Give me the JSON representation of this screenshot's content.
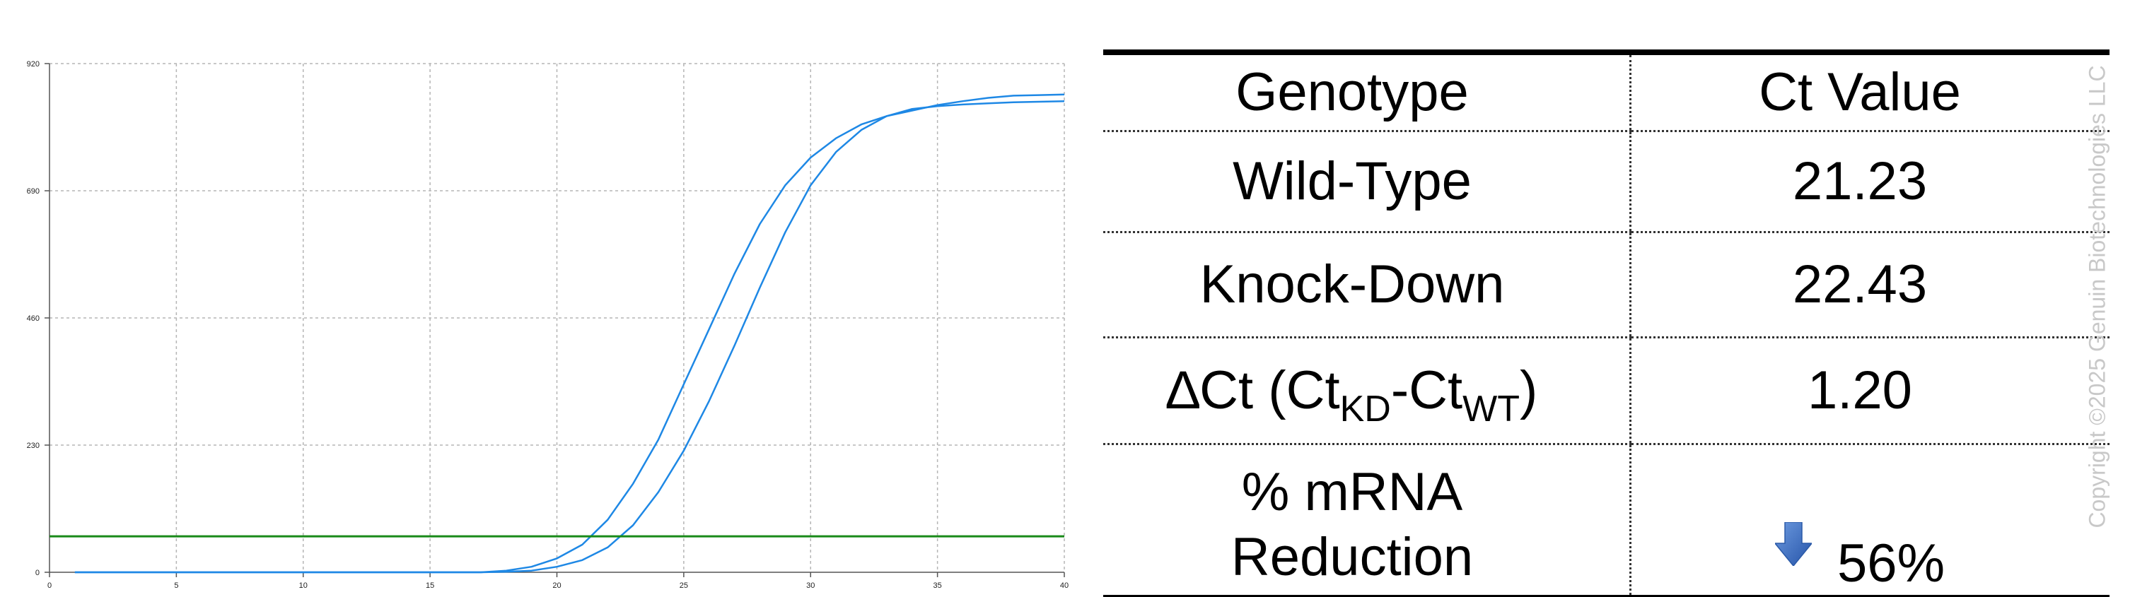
{
  "chart_data": {
    "type": "line",
    "x_ticks": [
      0,
      5,
      10,
      15,
      20,
      25,
      30,
      35,
      40
    ],
    "y_ticks": [
      0,
      230,
      460,
      690,
      920
    ],
    "xlim": [
      0,
      40
    ],
    "ylim": [
      0,
      920
    ],
    "grid": true,
    "threshold": 65,
    "series": [
      {
        "x": [
          1,
          5,
          10,
          15,
          16,
          17,
          18,
          19,
          20,
          21,
          22,
          23,
          24,
          25,
          26,
          27,
          28,
          29,
          30,
          31,
          32,
          33,
          34,
          35,
          36,
          37,
          38,
          39,
          40
        ],
        "values": [
          0,
          0,
          0,
          0,
          0,
          0,
          3,
          10,
          25,
          50,
          95,
          160,
          240,
          340,
          440,
          540,
          630,
          700,
          750,
          785,
          810,
          825,
          835,
          845,
          852,
          858,
          862,
          863,
          864
        ]
      },
      {
        "x": [
          1,
          5,
          10,
          15,
          16,
          17,
          18,
          19,
          20,
          21,
          22,
          23,
          24,
          25,
          26,
          27,
          28,
          29,
          30,
          31,
          32,
          33,
          34,
          35,
          36,
          37,
          38,
          39,
          40
        ],
        "values": [
          0,
          0,
          0,
          0,
          0,
          0,
          1,
          3,
          10,
          22,
          45,
          85,
          145,
          220,
          310,
          410,
          515,
          615,
          700,
          760,
          800,
          825,
          838,
          843,
          846,
          848,
          850,
          851,
          852
        ]
      }
    ],
    "colors": {
      "series": "#1e88e5",
      "threshold": "#188a18",
      "grid": "#b5b5b5",
      "axis": "#555555"
    }
  },
  "table": {
    "header": {
      "genotype": "Genotype",
      "ct_value": "Ct Value"
    },
    "rows": {
      "wild_type": {
        "label": "Wild-Type",
        "value": "21.23"
      },
      "knock_down": {
        "label": "Knock-Down",
        "value": "22.43"
      },
      "delta": {
        "delta_symbol": "∆",
        "label_a": "Ct (Ct",
        "sub_kd": "KD",
        "label_b": "-Ct",
        "sub_wt": "WT",
        "label_c": ")",
        "value": "1.20"
      },
      "reduction": {
        "label_line1": "% mRNA",
        "label_line2": "Reduction",
        "value": "56%",
        "icon": "down-arrow-icon"
      }
    },
    "arrow_color": "#3a6fc6"
  },
  "copyright": "Copyright ©2025 Genuin Biotechnologies LLC"
}
